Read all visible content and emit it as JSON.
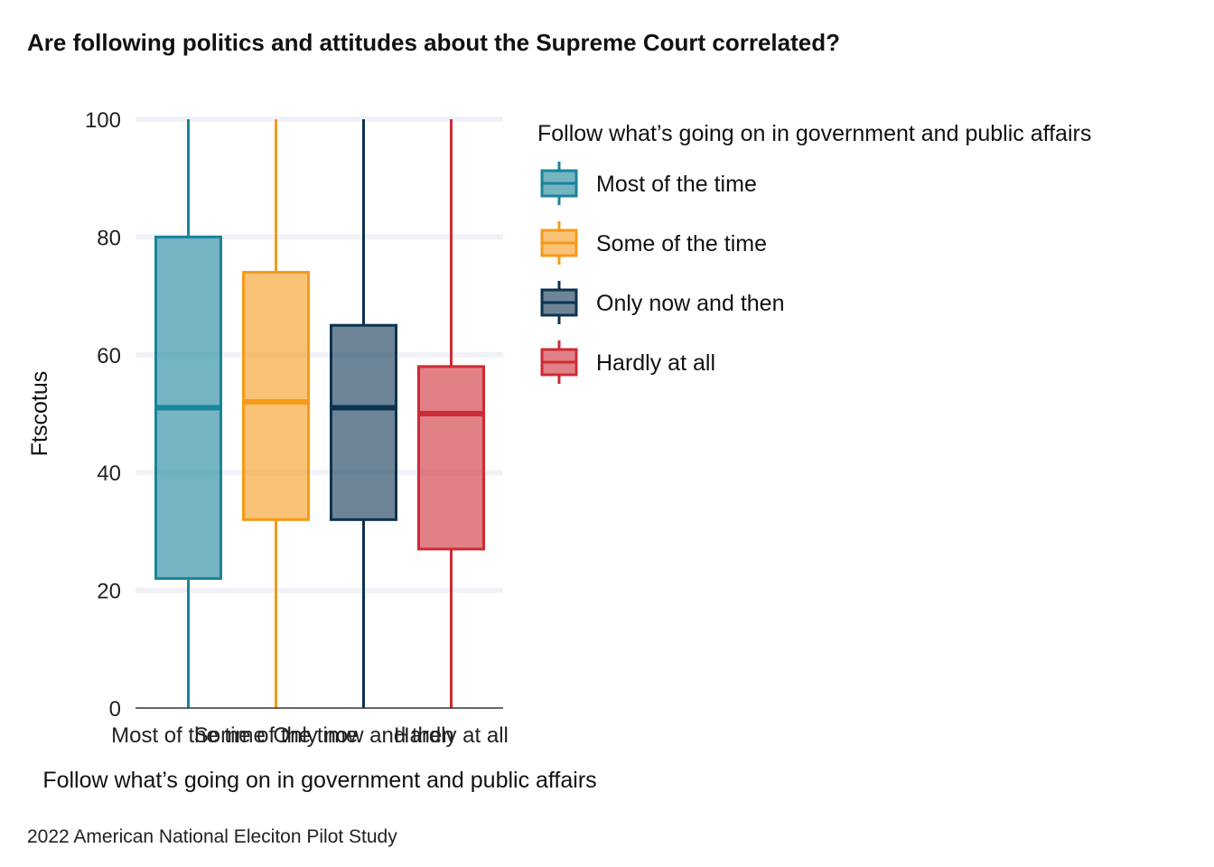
{
  "chart_data": {
    "type": "boxplot",
    "title": "Are following politics and attitudes about the Supreme Court correlated?",
    "xlabel": "Follow what’s going on in government and public affairs",
    "ylabel": "Ftscotus",
    "caption": "2022 American National Eleciton Pilot Study",
    "ylim": [
      0,
      100
    ],
    "yticks": [
      0,
      20,
      40,
      60,
      80,
      100
    ],
    "grid": true,
    "legend": {
      "title": "Follow what’s going on in government and public affairs",
      "position": "right"
    },
    "categories": [
      "Most of the time",
      "Some of the time",
      "Only now and then",
      "Hardly at all"
    ],
    "series": [
      {
        "name": "Most of the time",
        "color": "#19849a",
        "min": 0,
        "q1": 22,
        "median": 51,
        "q3": 80,
        "max": 100
      },
      {
        "name": "Some of the time",
        "color": "#f59a1b",
        "min": 0,
        "q1": 32,
        "median": 52,
        "q3": 74,
        "max": 100
      },
      {
        "name": "Only now and then",
        "color": "#0c3350",
        "min": 0,
        "q1": 32,
        "median": 51,
        "q3": 65,
        "max": 100
      },
      {
        "name": "Hardly at all",
        "color": "#cd2b35",
        "min": 0,
        "q1": 27,
        "median": 50,
        "q3": 58,
        "max": 100
      }
    ]
  }
}
